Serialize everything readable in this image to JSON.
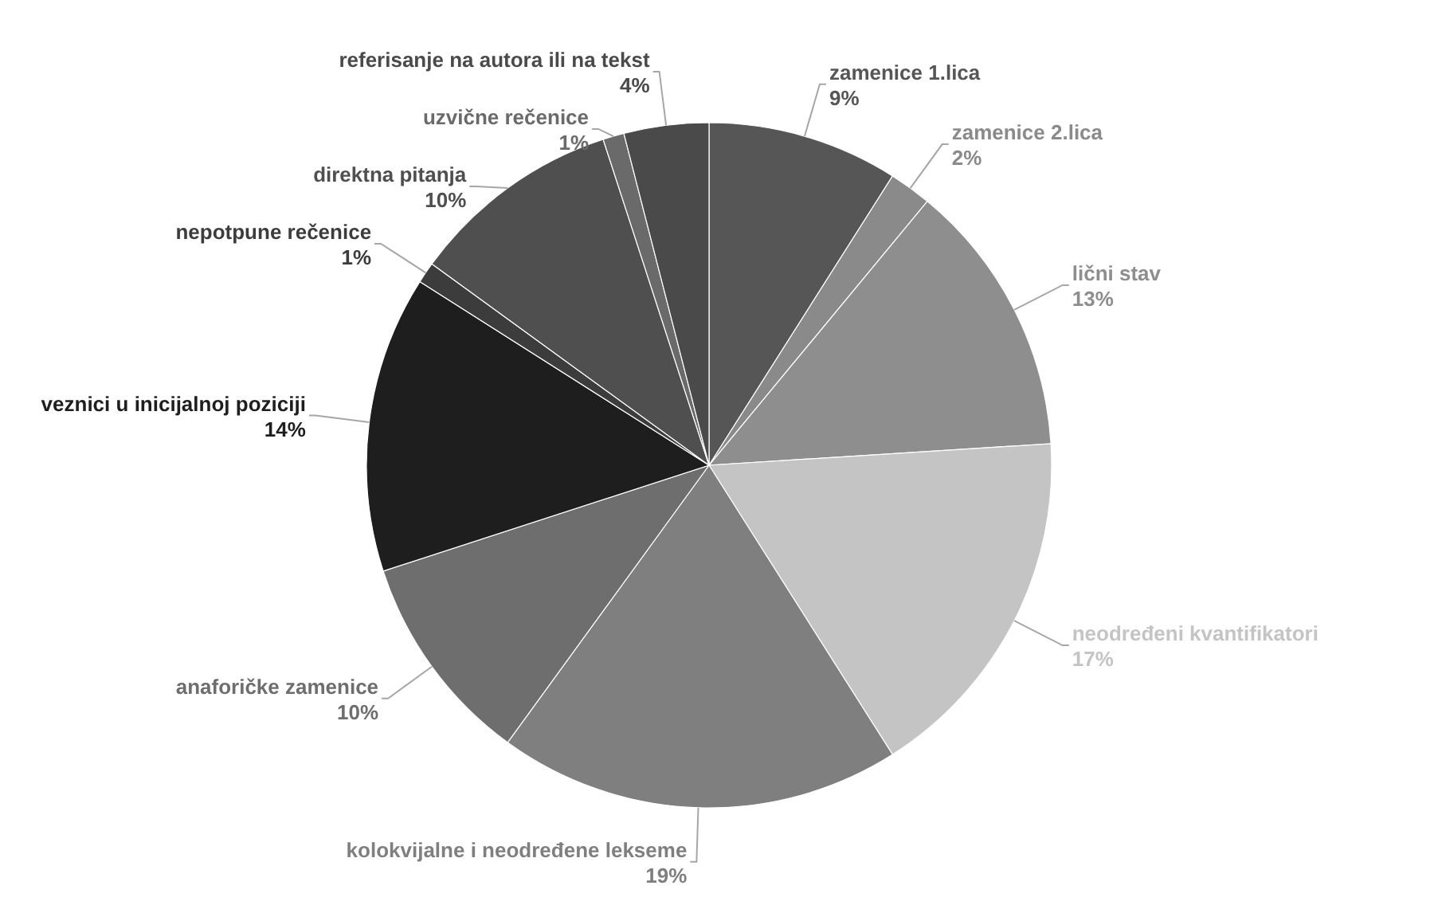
{
  "chart_data": {
    "type": "pie",
    "categories": [
      "zamenice 1.lica",
      "zamenice 2.lica",
      "lični stav",
      "neodređeni kvantifikatori",
      "kolokvijalne i neodređene lekseme",
      "anaforičke zamenice",
      "veznici u inicijalnoj poziciji",
      "nepotpune rečenice",
      "direktna pitanja",
      "uzvične rečenice",
      "referisanje na autora ili na tekst"
    ],
    "values": [
      9,
      2,
      13,
      17,
      19,
      10,
      14,
      1,
      10,
      1,
      4
    ],
    "colors": [
      "#565656",
      "#8a8a8a",
      "#8e8e8e",
      "#c4c4c4",
      "#7f7f7f",
      "#6e6e6e",
      "#1e1e1e",
      "#3c3c3c",
      "#4f4f4f",
      "#6a6a6a",
      "#4a4a4a"
    ],
    "value_labels": [
      "9%",
      "2%",
      "13%",
      "17%",
      "19%",
      "10%",
      "14%",
      "1%",
      "10%",
      "1%",
      "4%"
    ]
  }
}
